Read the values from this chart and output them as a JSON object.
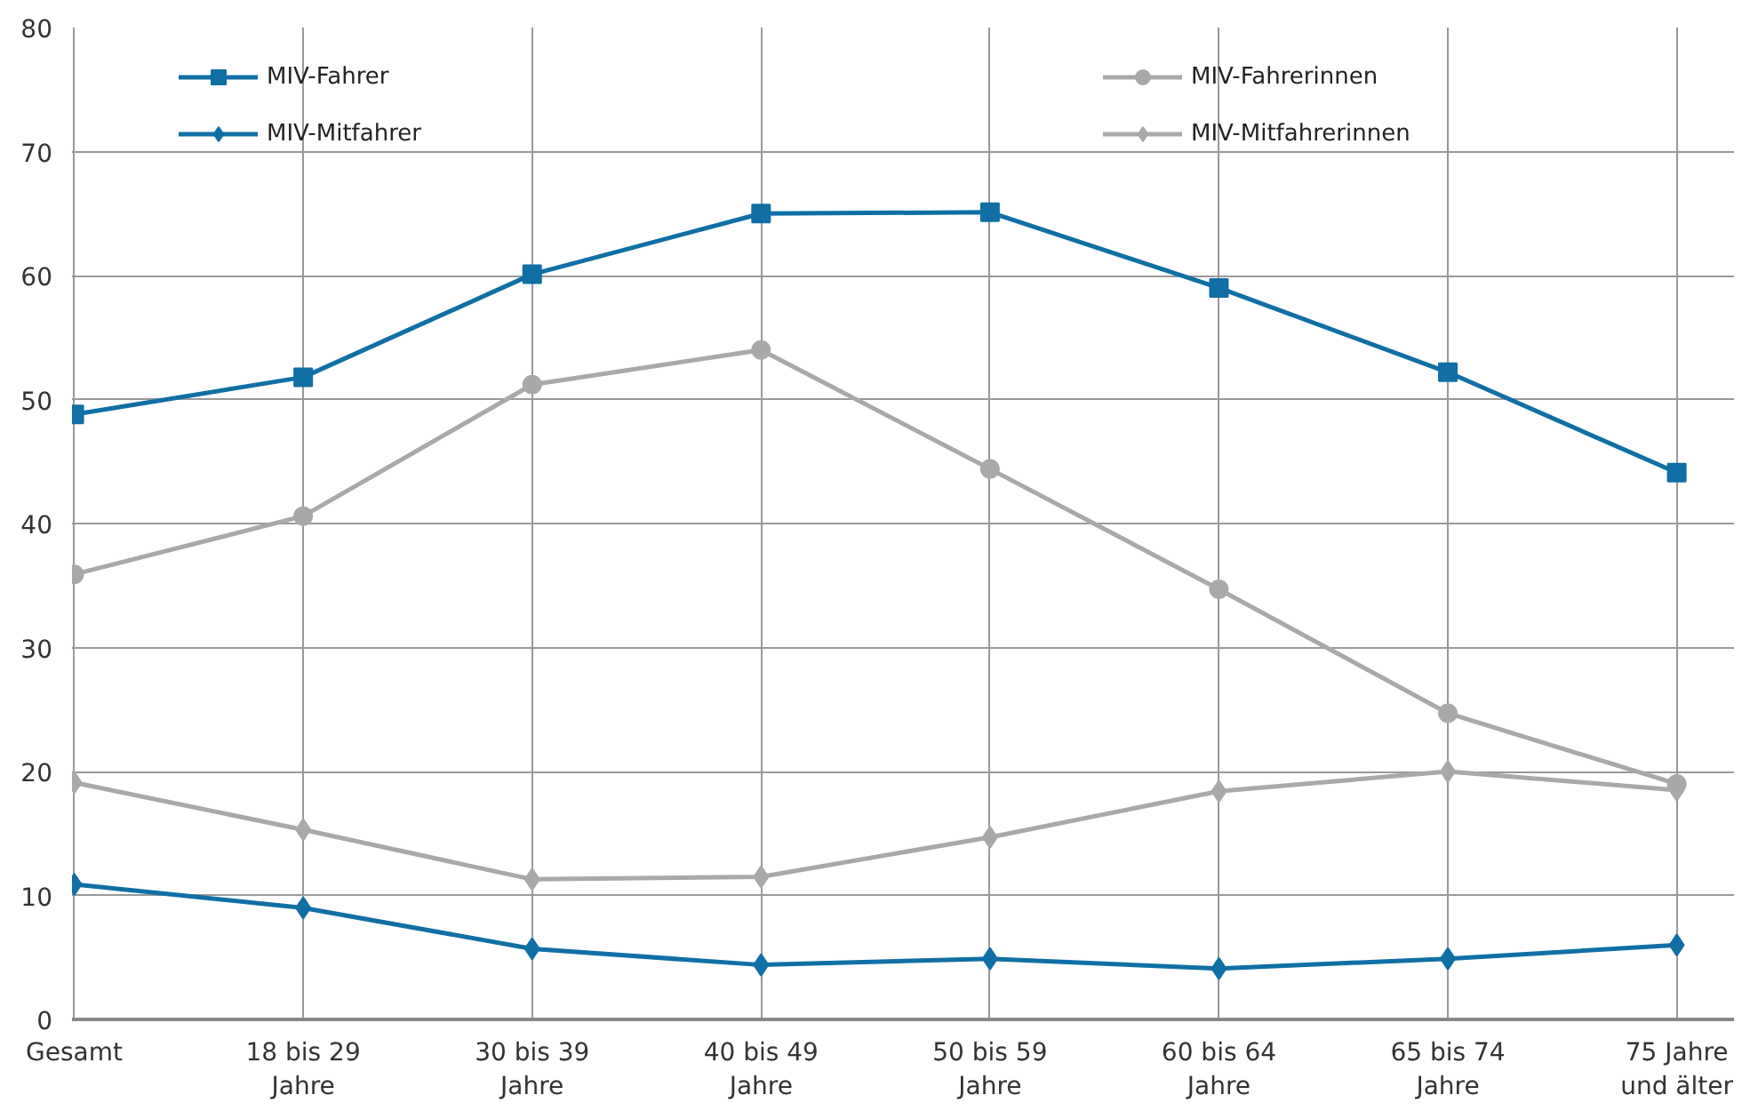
{
  "chart_data": {
    "type": "line",
    "categories": [
      "Gesamt",
      "18 bis 29\nJahre",
      "30 bis 39\nJahre",
      "40 bis 49\nJahre",
      "50 bis 59\nJahre",
      "60 bis 64\nJahre",
      "65 bis 74\nJahre",
      "75 Jahre\nund älter"
    ],
    "series": [
      {
        "name": "MIV-Fahrer",
        "color": "#106fa5",
        "marker": "square",
        "values": [
          48.8,
          51.8,
          60.1,
          65.0,
          65.1,
          59.0,
          52.2,
          44.1
        ]
      },
      {
        "name": "MIV-Mitfahrer",
        "color": "#106fa5",
        "marker": "diamond",
        "values": [
          10.9,
          9.0,
          5.7,
          4.4,
          4.9,
          4.1,
          4.9,
          6.0
        ]
      },
      {
        "name": "MIV-Fahrerinnen",
        "color": "#a9a9ab",
        "marker": "circle",
        "values": [
          35.9,
          40.6,
          51.2,
          54.0,
          44.4,
          34.7,
          24.7,
          19.0
        ]
      },
      {
        "name": "MIV-Mitfahrerinnen",
        "color": "#a9a9ab",
        "marker": "diamond",
        "values": [
          19.1,
          15.3,
          11.3,
          11.5,
          14.7,
          18.4,
          20.0,
          18.5
        ]
      }
    ],
    "ylim": [
      0,
      80
    ],
    "yticks": [
      0,
      10,
      20,
      30,
      40,
      50,
      60,
      70,
      80
    ],
    "grid": true,
    "legend": "top",
    "line_style": "solid"
  }
}
